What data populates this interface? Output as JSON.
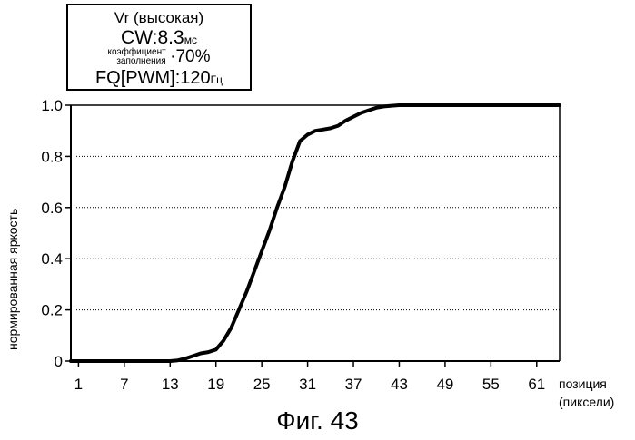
{
  "legend": {
    "line1": "Vr (высокая)",
    "cw_label": "CW:",
    "cw_value": "8.3",
    "cw_unit": "мс",
    "duty_label_1": "коэффициент",
    "duty_label_2": "заполнения",
    "duty_value": "·70%",
    "fq_label": "FQ[PWM]:",
    "fq_value": "120",
    "fq_unit": "Гц"
  },
  "figure_caption": "Фиг. 43",
  "chart_data": {
    "type": "line",
    "xlabel_line1": "позиция",
    "xlabel_line2": "(пиксели)",
    "ylabel": "нормированная яркость",
    "x_ticks": [
      "1",
      "7",
      "13",
      "19",
      "25",
      "31",
      "37",
      "43",
      "49",
      "55",
      "61"
    ],
    "y_ticks": [
      "0",
      "0.2",
      "0.4",
      "0.6",
      "0.8",
      "1.0"
    ],
    "xlim": [
      0,
      64
    ],
    "ylim": [
      0,
      1
    ],
    "grid": "horizontal-dotted",
    "series": [
      {
        "color": "#000000",
        "x": [
          0,
          13,
          14,
          15,
          16,
          17,
          18,
          19,
          20,
          21,
          22,
          23,
          24,
          25,
          26,
          27,
          28,
          29,
          30,
          31,
          32,
          33,
          34,
          35,
          36,
          37,
          38,
          39,
          40,
          41,
          42,
          43,
          44,
          45,
          46,
          64
        ],
        "y": [
          0,
          0,
          0.003,
          0.01,
          0.02,
          0.03,
          0.035,
          0.045,
          0.08,
          0.13,
          0.2,
          0.27,
          0.35,
          0.43,
          0.51,
          0.6,
          0.68,
          0.78,
          0.86,
          0.885,
          0.9,
          0.905,
          0.91,
          0.92,
          0.94,
          0.955,
          0.97,
          0.98,
          0.99,
          0.995,
          0.998,
          1.0,
          1.0,
          1.0,
          1.0,
          1.0
        ]
      }
    ]
  }
}
